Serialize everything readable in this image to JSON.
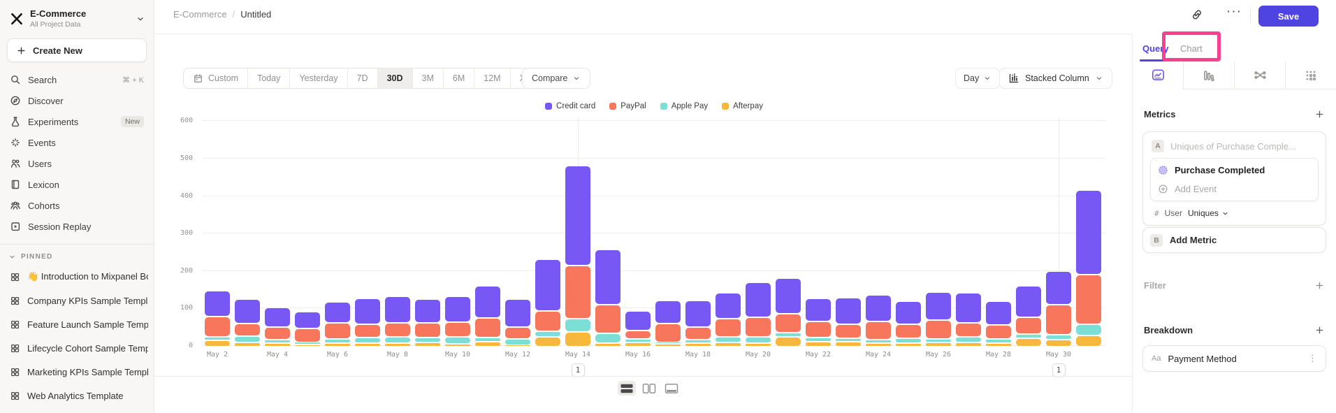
{
  "sidebar": {
    "project": {
      "name": "E-Commerce",
      "subtitle": "All Project Data"
    },
    "create_new_label": "Create New",
    "nav": [
      {
        "icon": "search-icon",
        "label": "Search",
        "shortcut": "⌘ + K"
      },
      {
        "icon": "discover-icon",
        "label": "Discover"
      },
      {
        "icon": "experiments-icon",
        "label": "Experiments",
        "badge": "New"
      },
      {
        "icon": "events-icon",
        "label": "Events"
      },
      {
        "icon": "users-icon",
        "label": "Users"
      },
      {
        "icon": "lexicon-icon",
        "label": "Lexicon"
      },
      {
        "icon": "cohorts-icon",
        "label": "Cohorts"
      },
      {
        "icon": "session-replay-icon",
        "label": "Session Replay"
      }
    ],
    "pinned": {
      "header": "PINNED",
      "items": [
        {
          "icon": "board-icon",
          "label": "👋 Introduction to Mixpanel Bo"
        },
        {
          "icon": "board-icon",
          "label": "Company KPIs Sample Templat"
        },
        {
          "icon": "board-icon",
          "label": "Feature Launch Sample Templa"
        },
        {
          "icon": "board-icon",
          "label": "Lifecycle Cohort Sample Temp"
        },
        {
          "icon": "board-icon",
          "label": "Marketing KPIs Sample Templat"
        },
        {
          "icon": "board-icon",
          "label": "Web Analytics Template"
        }
      ]
    }
  },
  "header": {
    "breadcrumb_root": "E-Commerce",
    "breadcrumb_separator": "/",
    "breadcrumb_leaf": "Untitled",
    "more_label": "···",
    "save_label": "Save"
  },
  "toolbar": {
    "ranges": [
      "Custom",
      "Today",
      "Yesterday",
      "7D",
      "30D",
      "3M",
      "6M",
      "12M",
      "XTD"
    ],
    "active_range": "30D",
    "compare_label": "Compare",
    "granularity_label": "Day",
    "chart_type_label": "Stacked Column"
  },
  "chart_data": {
    "type": "bar",
    "stacked": true,
    "x": [
      "May 2",
      "May 3",
      "May 4",
      "May 5",
      "May 6",
      "May 7",
      "May 8",
      "May 9",
      "May 10",
      "May 11",
      "May 12",
      "May 13",
      "May 14",
      "May 15",
      "May 16",
      "May 17",
      "May 18",
      "May 19",
      "May 20",
      "May 21",
      "May 22",
      "May 23",
      "May 24",
      "May 25",
      "May 26",
      "May 27",
      "May 28",
      "May 29",
      "May 30",
      "May 31"
    ],
    "x_tick_every": 2,
    "series": [
      {
        "name": "Credit card",
        "color": "#7858F5",
        "values": [
          69,
          65,
          52,
          45,
          55,
          69,
          70,
          64,
          69,
          86,
          73,
          137,
          267,
          147,
          52,
          61,
          71,
          69,
          92,
          95,
          62,
          71,
          70,
          61,
          76,
          81,
          63,
          83,
          90,
          225
        ]
      },
      {
        "name": "PayPal",
        "color": "#F8765C",
        "values": [
          54,
          34,
          33,
          37,
          43,
          35,
          38,
          39,
          39,
          52,
          33,
          54,
          141,
          77,
          23,
          50,
          35,
          48,
          53,
          50,
          43,
          38,
          50,
          37,
          50,
          37,
          38,
          46,
          81,
          133
        ]
      },
      {
        "name": "Apple Pay",
        "color": "#7CDFD6",
        "values": [
          9,
          16,
          10,
          5,
          11,
          16,
          16,
          12,
          18,
          10,
          16,
          15,
          36,
          26,
          8,
          5,
          9,
          15,
          17,
          11,
          10,
          8,
          8,
          13,
          8,
          14,
          11,
          10,
          12,
          31
        ]
      },
      {
        "name": "Afterpay",
        "color": "#F7B83B",
        "values": [
          17,
          12,
          9,
          6,
          10,
          9,
          10,
          12,
          8,
          14,
          4,
          27,
          39,
          9,
          12,
          7,
          9,
          12,
          9,
          26,
          14,
          14,
          10,
          10,
          12,
          12,
          9,
          23,
          19,
          29
        ]
      }
    ],
    "stack_order_bottom_to_top": [
      "Afterpay",
      "Apple Pay",
      "PayPal",
      "Credit card"
    ],
    "ylim": [
      0,
      600
    ],
    "yticks": [
      0,
      100,
      200,
      300,
      400,
      500,
      600
    ],
    "grid": true,
    "legend_position": "top-center",
    "annotations": [
      {
        "x": "May 14",
        "label": "1"
      },
      {
        "x": "May 30",
        "label": "1"
      }
    ]
  },
  "footer": {
    "layout_toggles": [
      {
        "icon": "layout-rows-icon",
        "active": true
      },
      {
        "icon": "layout-columns-icon",
        "active": false
      },
      {
        "icon": "layout-bottom-icon",
        "active": false
      }
    ]
  },
  "right_panel": {
    "tabs": {
      "query_label": "Query",
      "chart_label": "Chart",
      "active": "Query"
    },
    "annotation_highlight_color": "#f5418f",
    "view_tabs": [
      {
        "icon": "insights-tab-icon",
        "active": true
      },
      {
        "icon": "funnels-tab-icon",
        "active": false
      },
      {
        "icon": "flows-tab-icon",
        "active": false
      },
      {
        "icon": "retention-tab-icon",
        "active": false
      }
    ],
    "metrics": {
      "header": "Metrics",
      "group_badge": "A",
      "placeholder": "Uniques of Purchase Comple...",
      "event_label": "Purchase Completed",
      "add_event_label": "Add Event",
      "measurement_prefix": "#",
      "measurement_entity": "User",
      "measurement_aggregation": "Uniques",
      "add_metric_badge": "B",
      "add_metric_label": "Add Metric"
    },
    "filter": {
      "header": "Filter"
    },
    "breakdown": {
      "header": "Breakdown",
      "items": [
        {
          "prefix": "Aa",
          "label": "Payment Method"
        }
      ]
    }
  }
}
